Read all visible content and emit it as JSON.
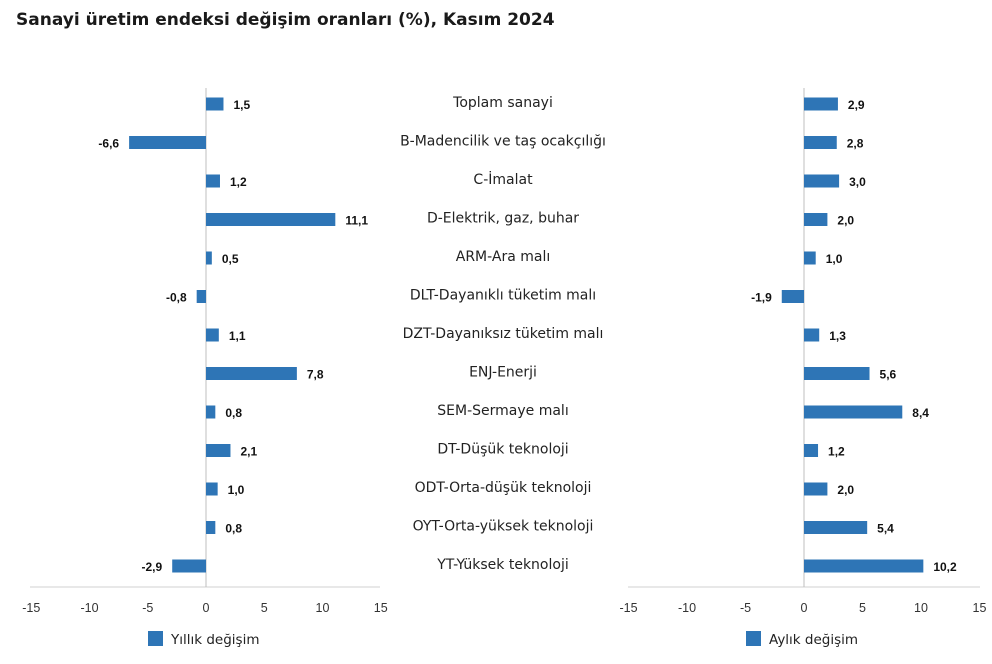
{
  "title": "Sanayi üretim endeksi değişim oranları (%), Kasım 2024",
  "chart_data": {
    "type": "bar",
    "orientation": "horizontal",
    "categories": [
      "Toplam sanayi",
      "B-Madencilik ve taş ocakçılığı",
      "C-İmalat",
      "D-Elektrik, gaz, buhar",
      "ARM-Ara malı",
      "DLT-Dayanıklı tüketim malı",
      "DZT-Dayanıksız tüketim malı",
      "ENJ-Enerji",
      "SEM-Sermaye malı",
      "DT-Düşük teknoloji",
      "ODT-Orta-düşük teknoloji",
      "OYT-Orta-yüksek teknoloji",
      "YT-Yüksek teknoloji"
    ],
    "series": [
      {
        "name": "Yıllık değişim",
        "values": [
          1.5,
          -6.6,
          1.2,
          11.1,
          0.5,
          -0.8,
          1.1,
          7.8,
          0.8,
          2.1,
          1.0,
          0.8,
          -2.9
        ],
        "labels": [
          "1,5",
          "-6,6",
          "1,2",
          "11,1",
          "0,5",
          "-0,8",
          "1,1",
          "7,8",
          "0,8",
          "2,1",
          "1,0",
          "0,8",
          "-2,9"
        ]
      },
      {
        "name": "Aylık değişim",
        "values": [
          2.9,
          2.8,
          3.0,
          2.0,
          1.0,
          -1.9,
          1.3,
          5.6,
          8.4,
          1.2,
          2.0,
          5.4,
          10.2
        ],
        "labels": [
          "2,9",
          "2,8",
          "3,0",
          "2,0",
          "1,0",
          "-1,9",
          "1,3",
          "5,6",
          "8,4",
          "1,2",
          "2,0",
          "5,4",
          "10,2"
        ]
      }
    ],
    "xlim": [
      -15,
      15
    ],
    "xticks": [
      -15,
      -10,
      -5,
      0,
      5,
      10,
      15
    ],
    "xtick_labels": [
      "-15",
      "-10",
      "-5",
      "0",
      "5",
      "10",
      "15"
    ],
    "bar_color": "#2e75b6",
    "legend": [
      "Yıllık değişim",
      "Aylık değişim"
    ],
    "legend_position": "bottom"
  }
}
